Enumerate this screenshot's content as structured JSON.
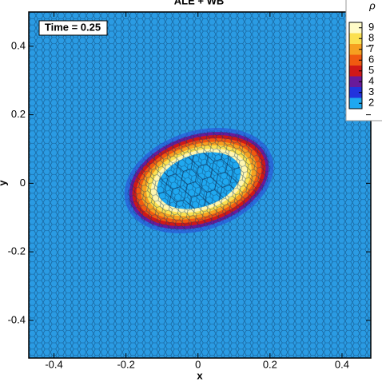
{
  "chart_data": {
    "type": "mesh-field",
    "title": "ALE + WB",
    "annotation": "Time = 0.25",
    "x_label": "x",
    "y_label": "y",
    "xlim": [
      -0.47,
      0.48
    ],
    "ylim": [
      -0.51,
      0.5
    ],
    "xticks": [
      -0.4,
      -0.2,
      0,
      0.2,
      0.4
    ],
    "yticks": [
      -0.4,
      -0.2,
      0,
      0.2,
      0.4
    ],
    "colorbar": {
      "label": "ρ",
      "lim": [
        1.5,
        9.5
      ],
      "ticks": [
        2,
        3,
        4,
        5,
        6,
        7,
        8,
        9
      ],
      "colors": [
        "#1fa8f0",
        "#2233dd",
        "#6a1a9a",
        "#d01818",
        "#f05a10",
        "#f6a020",
        "#fbe050",
        "#fffbc8"
      ]
    }
  }
}
